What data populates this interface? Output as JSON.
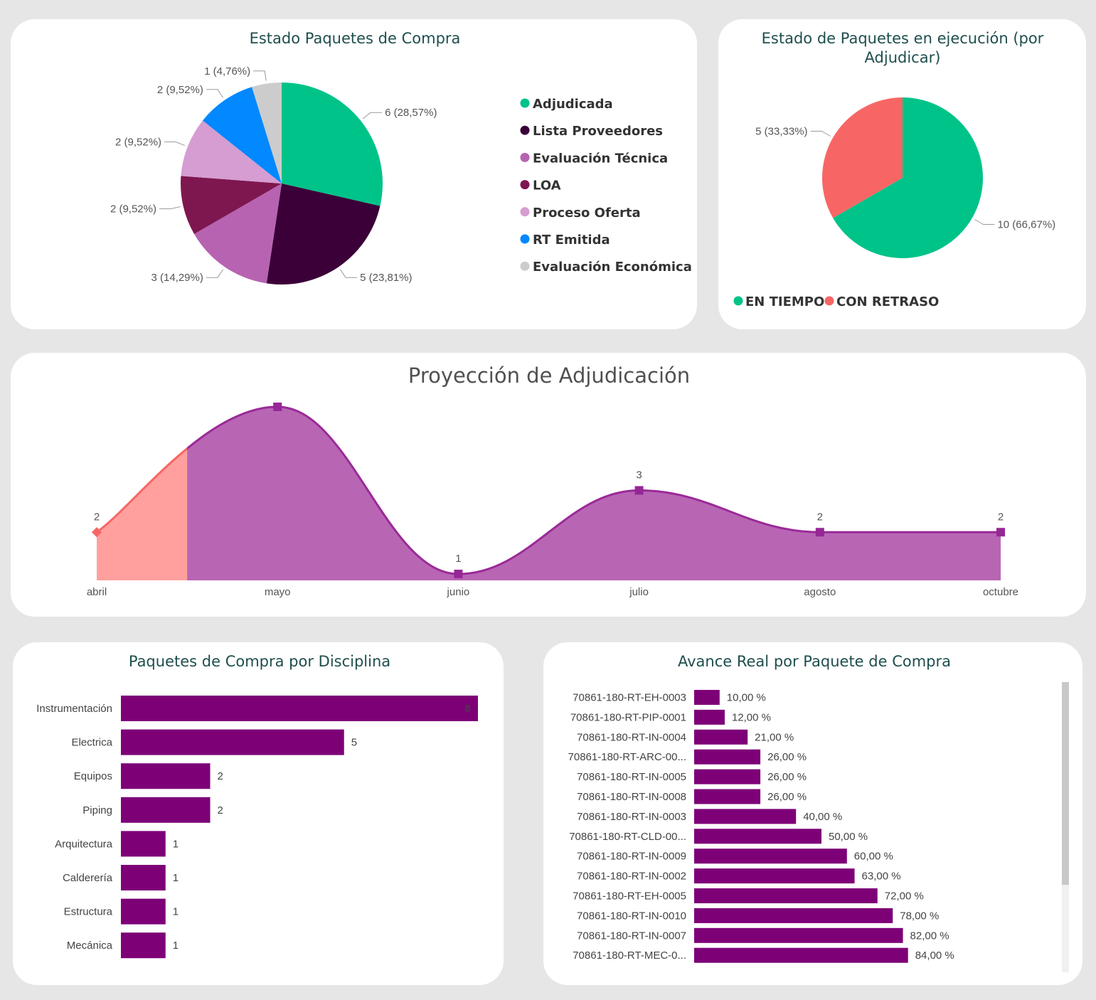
{
  "charts": [
    {
      "id": "estado-paquetes",
      "chart_data": {
        "type": "pie",
        "title": "Estado Paquetes de Compra",
        "slices": [
          {
            "name": "Adjudicada",
            "value": 6,
            "label": "6 (28,57%)",
            "color": "#00c389"
          },
          {
            "name": "Lista Proveedores",
            "value": 5,
            "label": "5 (23,81%)",
            "color": "#3b0038"
          },
          {
            "name": "Evaluación Técnica",
            "value": 3,
            "label": "3 (14,29%)",
            "color": "#b763b2"
          },
          {
            "name": "LOA",
            "value": 2,
            "label": "2 (9,52%)",
            "color": "#7e1750"
          },
          {
            "name": "Proceso Oferta",
            "value": 2,
            "label": "2 (9,52%)",
            "color": "#d59dd2"
          },
          {
            "name": "RT Emitida",
            "value": 2,
            "label": "2 (9,52%)",
            "color": "#0288ff"
          },
          {
            "name": "Evaluación Económica",
            "value": 1,
            "label": "1 (4,76%)",
            "color": "#cccccc"
          }
        ],
        "legend_position": "right"
      }
    },
    {
      "id": "estado-ejecucion",
      "chart_data": {
        "type": "pie",
        "title_lines": [
          "Estado de Paquetes en ejecución (por",
          "Adjudicar)"
        ],
        "slices": [
          {
            "name": "EN TIEMPO",
            "value": 10,
            "label": "10 (66,67%)",
            "color": "#00c389"
          },
          {
            "name": "CON RETRASO",
            "value": 5,
            "label": "5 (33,33%)",
            "color": "#f76664"
          }
        ],
        "legend_position": "bottom"
      }
    },
    {
      "id": "proyeccion",
      "chart_data": {
        "type": "area",
        "title": "Proyección de Adjudicación",
        "categories": [
          "abril",
          "mayo",
          "junio",
          "julio",
          "agosto",
          "octubre"
        ],
        "values": [
          2,
          5,
          1,
          3,
          2,
          2
        ],
        "data_labels": [
          "2",
          "",
          "1",
          "3",
          "2",
          "2"
        ],
        "ylim": [
          1,
          5
        ],
        "colors": {
          "past_fill": "#ffa09e",
          "past_line": "#f76664",
          "fill": "#b866b4",
          "line": "#9a2a98",
          "marker": "#962796"
        }
      }
    },
    {
      "id": "disciplina",
      "chart_data": {
        "type": "bar",
        "orientation": "horizontal",
        "title": "Paquetes de Compra por Disciplina",
        "categories": [
          "Instrumentación",
          "Electrica",
          "Equipos",
          "Piping",
          "Arquitectura",
          "Calderería",
          "Estructura",
          "Mecánica"
        ],
        "values": [
          8,
          5,
          2,
          2,
          1,
          1,
          1,
          1
        ],
        "labels": [
          "8",
          "5",
          "2",
          "2",
          "1",
          "1",
          "1",
          "1"
        ],
        "xlim": [
          0,
          8
        ],
        "color": "#7d0077"
      }
    },
    {
      "id": "avance",
      "chart_data": {
        "type": "bar",
        "orientation": "horizontal",
        "title": "Avance Real por Paquete de Compra",
        "categories": [
          "70861-180-RT-EH-0003",
          "70861-180-RT-PIP-0001",
          "70861-180-RT-IN-0004",
          "70861-180-RT-ARC-00...",
          "70861-180-RT-IN-0005",
          "70861-180-RT-IN-0008",
          "70861-180-RT-IN-0003",
          "70861-180-RT-CLD-00...",
          "70861-180-RT-IN-0009",
          "70861-180-RT-IN-0002",
          "70861-180-RT-EH-0005",
          "70861-180-RT-IN-0010",
          "70861-180-RT-IN-0007",
          "70861-180-RT-MEC-0..."
        ],
        "values": [
          10,
          12,
          21,
          26,
          26,
          26,
          40,
          50,
          60,
          63,
          72,
          78,
          82,
          84
        ],
        "labels": [
          "10,00 %",
          "12,00 %",
          "21,00 %",
          "26,00 %",
          "26,00 %",
          "26,00 %",
          "40,00 %",
          "50,00 %",
          "60,00 %",
          "63,00 %",
          "72,00 %",
          "78,00 %",
          "82,00 %",
          "84,00 %"
        ],
        "xlim": [
          0,
          100
        ],
        "color": "#7d0077"
      }
    }
  ]
}
